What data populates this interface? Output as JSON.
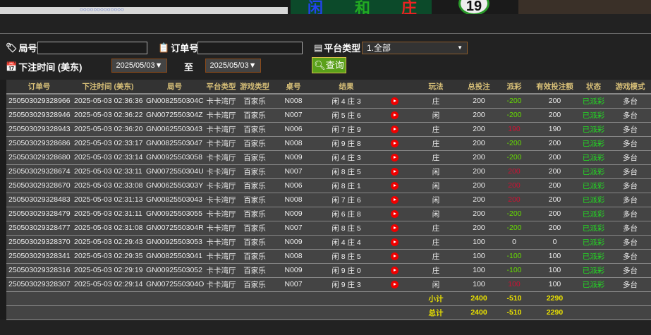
{
  "banner": {
    "big_chars": [
      "闲",
      "和",
      "庄"
    ],
    "ball_number": "19",
    "dots": "○○○○○○○○○○○○○"
  },
  "filters": {
    "round_label": "局号",
    "round_value": "",
    "order_label": "订单号",
    "order_value": "",
    "platform_label": "平台类型",
    "platform_selected": "1.全部",
    "time_label": "下注时间 (美东)",
    "date_from": "2025/05/03▼",
    "to_label": "至",
    "date_to": "2025/05/03▼",
    "query_label": "查询"
  },
  "columns": [
    "订单号",
    "下注时间 (美东)",
    "局号",
    "平台类型",
    "游戏类型",
    "桌号",
    "结果",
    "",
    "玩法",
    "总投注",
    "派彩",
    "有效投注额",
    "状态",
    "游戏模式"
  ],
  "colors": {
    "win": "#66dd00",
    "loss": "#cc1133",
    "status": "#22dd22",
    "total": "#e8e000",
    "header": "#d8c078"
  },
  "rows": [
    [
      "250503029328966",
      "2025-05-03 02:36:36",
      "GN0082550304C",
      "卡卡湾厅",
      "百家乐",
      "N008",
      "闲 4 庄 3",
      "庄",
      "200",
      "-200",
      "200",
      "已派彩",
      "多台"
    ],
    [
      "250503029328946",
      "2025-05-03 02:36:22",
      "GN0072550304Z",
      "卡卡湾厅",
      "百家乐",
      "N007",
      "闲 5 庄 6",
      "闲",
      "200",
      "-200",
      "200",
      "已派彩",
      "多台"
    ],
    [
      "250503029328943",
      "2025-05-03 02:36:20",
      "GN00625503043",
      "卡卡湾厅",
      "百家乐",
      "N006",
      "闲 7 庄 9",
      "庄",
      "200",
      "190",
      "190",
      "已派彩",
      "多台"
    ],
    [
      "250503029328686",
      "2025-05-03 02:33:17",
      "GN00825503047",
      "卡卡湾厅",
      "百家乐",
      "N008",
      "闲 9 庄 8",
      "庄",
      "200",
      "-200",
      "200",
      "已派彩",
      "多台"
    ],
    [
      "250503029328680",
      "2025-05-03 02:33:14",
      "GN00925503058",
      "卡卡湾厅",
      "百家乐",
      "N009",
      "闲 4 庄 3",
      "庄",
      "200",
      "-200",
      "200",
      "已派彩",
      "多台"
    ],
    [
      "250503029328674",
      "2025-05-03 02:33:11",
      "GN0072550304U",
      "卡卡湾厅",
      "百家乐",
      "N007",
      "闲 8 庄 5",
      "闲",
      "200",
      "200",
      "200",
      "已派彩",
      "多台"
    ],
    [
      "250503029328670",
      "2025-05-03 02:33:08",
      "GN0062550303Y",
      "卡卡湾厅",
      "百家乐",
      "N006",
      "闲 8 庄 1",
      "闲",
      "200",
      "200",
      "200",
      "已派彩",
      "多台"
    ],
    [
      "250503029328483",
      "2025-05-03 02:31:13",
      "GN00825503043",
      "卡卡湾厅",
      "百家乐",
      "N008",
      "闲 7 庄 6",
      "闲",
      "200",
      "200",
      "200",
      "已派彩",
      "多台"
    ],
    [
      "250503029328479",
      "2025-05-03 02:31:11",
      "GN00925503055",
      "卡卡湾厅",
      "百家乐",
      "N009",
      "闲 6 庄 8",
      "闲",
      "200",
      "-200",
      "200",
      "已派彩",
      "多台"
    ],
    [
      "250503029328477",
      "2025-05-03 02:31:08",
      "GN0072550304R",
      "卡卡湾厅",
      "百家乐",
      "N007",
      "闲 8 庄 5",
      "庄",
      "200",
      "-200",
      "200",
      "已派彩",
      "多台"
    ],
    [
      "250503029328370",
      "2025-05-03 02:29:43",
      "GN00925503053",
      "卡卡湾厅",
      "百家乐",
      "N009",
      "闲 4 庄 4",
      "庄",
      "100",
      "0",
      "0",
      "已派彩",
      "多台"
    ],
    [
      "250503029328341",
      "2025-05-03 02:29:35",
      "GN00825503041",
      "卡卡湾厅",
      "百家乐",
      "N008",
      "闲 8 庄 5",
      "庄",
      "100",
      "-100",
      "100",
      "已派彩",
      "多台"
    ],
    [
      "250503029328316",
      "2025-05-03 02:29:19",
      "GN00925503052",
      "卡卡湾厅",
      "百家乐",
      "N009",
      "闲 9 庄 0",
      "庄",
      "100",
      "-100",
      "100",
      "已派彩",
      "多台"
    ],
    [
      "250503029328307",
      "2025-05-03 02:29:14",
      "GN0072550304O",
      "卡卡湾厅",
      "百家乐",
      "N007",
      "闲 9 庄 3",
      "闲",
      "100",
      "100",
      "100",
      "已派彩",
      "多台"
    ]
  ],
  "subtotal": {
    "label": "小计",
    "total_bet": "2400",
    "payout": "-510",
    "valid_bet": "2290"
  },
  "grand_total": {
    "label": "总计",
    "total_bet": "2400",
    "payout": "-510",
    "valid_bet": "2290"
  }
}
